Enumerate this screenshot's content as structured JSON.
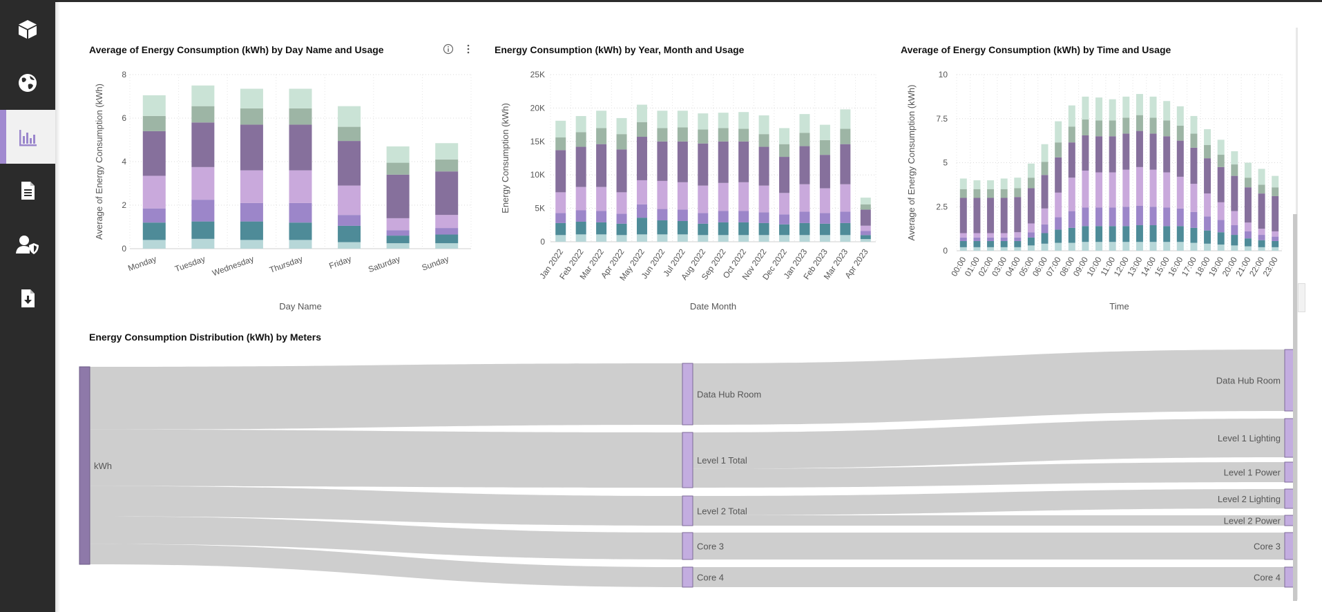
{
  "nav": {
    "items": [
      {
        "name": "nav-item-cube",
        "icon": "cube-icon"
      },
      {
        "name": "nav-item-globe",
        "icon": "globe-icon"
      },
      {
        "name": "nav-item-reports",
        "icon": "bar-chart-icon",
        "active": true
      },
      {
        "name": "nav-item-document",
        "icon": "document-icon"
      },
      {
        "name": "nav-item-user-security",
        "icon": "user-shield-icon"
      },
      {
        "name": "nav-item-download",
        "icon": "download-file-icon"
      }
    ]
  },
  "colors": {
    "sidebar": "#2b2b2b",
    "accent": "#a18ad0",
    "usage": [
      "#b7d7d8",
      "#4e8b98",
      "#9c86c9",
      "#c9a9dc",
      "#86709c",
      "#9db5a5",
      "#cae3d6"
    ],
    "link": "#cbcbcb",
    "node": "#c3ade0",
    "node_dark": "#8e79a9"
  },
  "chart_data": [
    {
      "type": "bar",
      "stacked": true,
      "title": "Average of Energy Consumption (kWh) by Day Name and Usage",
      "xlabel": "Day Name",
      "ylabel": "Average of Energy Consumption (kWh)",
      "ylim": [
        0,
        8
      ],
      "yticks": [
        "0",
        "2",
        "4",
        "6",
        "8"
      ],
      "categories": [
        "Monday",
        "Tuesday",
        "Wednesday",
        "Thursday",
        "Friday",
        "Saturday",
        "Sunday"
      ],
      "series": [
        {
          "values": [
            0.4,
            0.45,
            0.4,
            0.4,
            0.3,
            0.25,
            0.25
          ]
        },
        {
          "values": [
            0.8,
            0.8,
            0.85,
            0.8,
            0.75,
            0.35,
            0.4
          ]
        },
        {
          "values": [
            0.65,
            1.0,
            0.85,
            0.9,
            0.5,
            0.25,
            0.3
          ]
        },
        {
          "values": [
            1.5,
            1.5,
            1.5,
            1.5,
            1.35,
            0.55,
            0.6
          ]
        },
        {
          "values": [
            2.05,
            2.05,
            2.1,
            2.1,
            2.05,
            2.0,
            2.0
          ]
        },
        {
          "values": [
            0.7,
            0.75,
            0.75,
            0.75,
            0.65,
            0.55,
            0.55
          ]
        },
        {
          "values": [
            0.95,
            0.95,
            0.9,
            0.9,
            0.95,
            0.75,
            0.75
          ]
        }
      ]
    },
    {
      "type": "bar",
      "stacked": true,
      "title": "Energy Consumption (kWh) by Year, Month and Usage",
      "xlabel": "Date Month",
      "ylabel": "Energy Consumption (kWh)",
      "ylim": [
        0,
        25000
      ],
      "yticks": [
        "0",
        "5K",
        "10K",
        "15K",
        "20K",
        "25K"
      ],
      "categories": [
        "Jan 2022",
        "Feb 2022",
        "Mar 2022",
        "Apr 2022",
        "May 2022",
        "Jun 2022",
        "Jul 2022",
        "Aug 2022",
        "Sep 2022",
        "Oct 2022",
        "Nov 2022",
        "Dec 2022",
        "Jan 2023",
        "Feb 2023",
        "Mar 2023",
        "Apr 2023"
      ],
      "series": [
        {
          "values": [
            1000,
            1100,
            1100,
            1000,
            1100,
            1100,
            1100,
            1000,
            1000,
            1000,
            1000,
            1000,
            1000,
            1000,
            1000,
            400
          ]
        },
        {
          "values": [
            1800,
            1900,
            1800,
            1700,
            2500,
            2100,
            2000,
            1700,
            1900,
            1900,
            1800,
            1600,
            1800,
            1700,
            1800,
            600
          ]
        },
        {
          "values": [
            1500,
            1700,
            1700,
            1500,
            2000,
            1700,
            1700,
            1600,
            1700,
            1700,
            1600,
            1500,
            1700,
            1600,
            1700,
            600
          ]
        },
        {
          "values": [
            3100,
            3500,
            3600,
            3200,
            3600,
            4200,
            4100,
            4100,
            4200,
            4300,
            4000,
            3200,
            4100,
            3700,
            4100,
            800
          ]
        },
        {
          "values": [
            6300,
            6000,
            6400,
            6400,
            6500,
            5900,
            6100,
            6300,
            6200,
            6100,
            5800,
            5400,
            5700,
            5000,
            6000,
            2400
          ]
        },
        {
          "values": [
            1900,
            2200,
            2400,
            2300,
            2200,
            2000,
            2100,
            2100,
            2000,
            1900,
            1900,
            1900,
            2000,
            2200,
            2300,
            800
          ]
        },
        {
          "values": [
            2500,
            2400,
            2600,
            2400,
            2600,
            2600,
            2500,
            2400,
            2300,
            2500,
            2800,
            2400,
            2800,
            2300,
            2900,
            1000
          ]
        }
      ]
    },
    {
      "type": "bar",
      "stacked": true,
      "title": "Average of Energy Consumption (kWh) by Time and Usage",
      "xlabel": "Time",
      "ylabel": "Average of Energy Consumption (kWh)",
      "ylim": [
        0,
        10
      ],
      "yticks": [
        "0",
        "2.5",
        "5",
        "7.5",
        "10"
      ],
      "categories": [
        "00:00",
        "01:00",
        "02:00",
        "03:00",
        "04:00",
        "05:00",
        "06:00",
        "07:00",
        "08:00",
        "09:00",
        "10:00",
        "11:00",
        "12:00",
        "13:00",
        "14:00",
        "15:00",
        "16:00",
        "17:00",
        "18:00",
        "19:00",
        "20:00",
        "21:00",
        "22:00",
        "23:00"
      ],
      "series": [
        {
          "values": [
            0.2,
            0.2,
            0.2,
            0.2,
            0.2,
            0.3,
            0.4,
            0.45,
            0.45,
            0.5,
            0.5,
            0.5,
            0.5,
            0.5,
            0.5,
            0.5,
            0.5,
            0.45,
            0.4,
            0.35,
            0.3,
            0.25,
            0.2,
            0.2
          ]
        },
        {
          "values": [
            0.35,
            0.35,
            0.35,
            0.35,
            0.35,
            0.45,
            0.6,
            0.75,
            0.85,
            0.9,
            0.9,
            0.9,
            0.9,
            0.95,
            0.95,
            0.9,
            0.9,
            0.85,
            0.75,
            0.7,
            0.6,
            0.45,
            0.4,
            0.35
          ]
        },
        {
          "values": [
            0.2,
            0.2,
            0.2,
            0.2,
            0.2,
            0.3,
            0.5,
            0.7,
            0.95,
            1.05,
            1.05,
            1.05,
            1.1,
            1.1,
            1.05,
            1.05,
            1.0,
            0.9,
            0.8,
            0.7,
            0.55,
            0.4,
            0.3,
            0.25
          ]
        },
        {
          "values": [
            0.25,
            0.25,
            0.25,
            0.25,
            0.3,
            0.5,
            0.9,
            1.4,
            1.9,
            2.1,
            2.0,
            2.0,
            2.1,
            2.2,
            2.1,
            2.0,
            1.8,
            1.6,
            1.3,
            1.0,
            0.8,
            0.5,
            0.35,
            0.3
          ]
        },
        {
          "values": [
            2.0,
            2.0,
            2.0,
            2.0,
            2.0,
            2.0,
            1.9,
            2.0,
            2.0,
            2.0,
            2.05,
            2.05,
            2.05,
            2.05,
            2.05,
            2.05,
            2.05,
            2.05,
            2.0,
            2.0,
            2.0,
            2.0,
            2.0,
            2.0
          ]
        },
        {
          "values": [
            0.5,
            0.5,
            0.5,
            0.5,
            0.5,
            0.6,
            0.75,
            0.85,
            0.9,
            0.9,
            0.9,
            0.9,
            0.9,
            0.9,
            0.9,
            0.9,
            0.85,
            0.8,
            0.75,
            0.7,
            0.65,
            0.55,
            0.5,
            0.5
          ]
        },
        {
          "values": [
            0.6,
            0.5,
            0.5,
            0.6,
            0.6,
            0.8,
            1.0,
            1.2,
            1.2,
            1.3,
            1.3,
            1.2,
            1.2,
            1.2,
            1.2,
            1.1,
            1.1,
            1.0,
            0.9,
            0.85,
            0.75,
            0.85,
            0.9,
            0.65
          ]
        }
      ]
    },
    {
      "type": "sankey",
      "title": "Energy Consumption Distribution (kWh) by Meters",
      "source": "kWh",
      "groups": [
        "Data Hub Room",
        "Level 1 Total",
        "Level 2 Total",
        "Core 3",
        "Core 4"
      ],
      "meters": [
        "Data Hub Room",
        "Level 1 Lighting",
        "Level 1 Power",
        "Level 2 Lighting",
        "Level 2 Power",
        "Core 3",
        "Core 4"
      ],
      "flows": [
        {
          "from": "kWh",
          "to": "Data Hub Room",
          "value": 88
        },
        {
          "from": "kWh",
          "to": "Level 1 Total",
          "value": 80
        },
        {
          "from": "kWh",
          "to": "Level 2 Total",
          "value": 41
        },
        {
          "from": "kWh",
          "to": "Core 3",
          "value": 37
        },
        {
          "from": "kWh",
          "to": "Core 4",
          "value": 28
        },
        {
          "from": "Data Hub Room",
          "to": "Data Hub Room",
          "value": 88
        },
        {
          "from": "Level 1 Total",
          "to": "Level 1 Lighting",
          "value": 50
        },
        {
          "from": "Level 1 Total",
          "to": "Level 1 Power",
          "value": 30
        },
        {
          "from": "Level 2 Total",
          "to": "Level 2 Lighting",
          "value": 27
        },
        {
          "from": "Level 2 Total",
          "to": "Level 2 Power",
          "value": 14
        },
        {
          "from": "Core 3",
          "to": "Core 3",
          "value": 37
        },
        {
          "from": "Core 4",
          "to": "Core 4",
          "value": 28
        }
      ]
    }
  ]
}
